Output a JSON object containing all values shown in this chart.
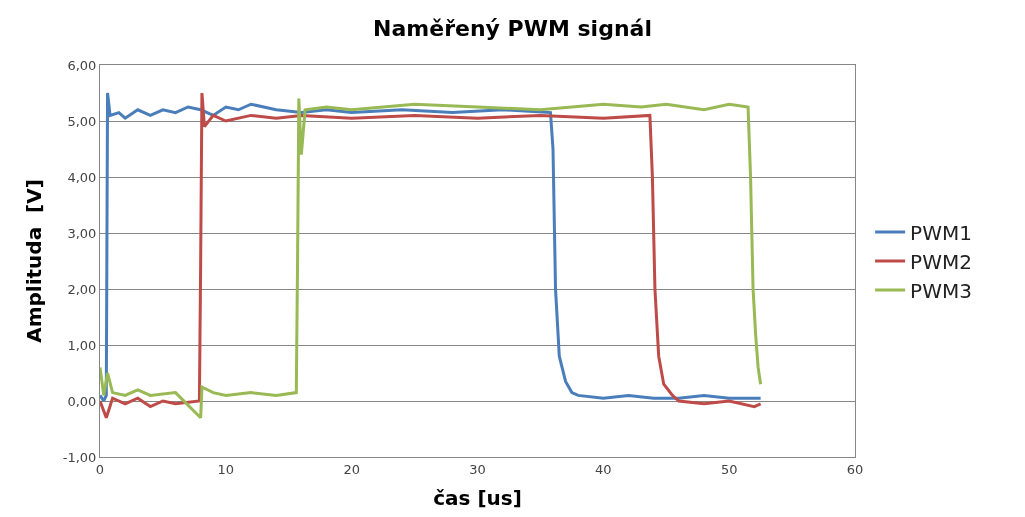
{
  "chart_data": {
    "type": "line",
    "title": "Naměřený PWM signál",
    "xlabel": "čas [us]",
    "ylabel": "Amplituda  [V]",
    "xlim": [
      0,
      60
    ],
    "xticks": [
      0,
      10,
      20,
      30,
      40,
      50,
      60
    ],
    "ylim": [
      -1,
      6
    ],
    "yticks": [
      {
        "value": -1,
        "label": "-1,00"
      },
      {
        "value": 0,
        "label": "0,00"
      },
      {
        "value": 1,
        "label": "1,00"
      },
      {
        "value": 2,
        "label": "2,00"
      },
      {
        "value": 3,
        "label": "3,00"
      },
      {
        "value": 4,
        "label": "4,00"
      },
      {
        "value": 5,
        "label": "5,00"
      },
      {
        "value": 6,
        "label": "6,00"
      }
    ],
    "grid": "y",
    "legend": "right",
    "marker": "none",
    "line_style": "solid",
    "series": [
      {
        "name": "PWM1",
        "color": "#4a7ebb",
        "x": [
          0,
          0.3,
          0.5,
          0.6,
          0.8,
          1.5,
          2,
          3,
          4,
          5,
          6,
          7,
          8,
          9,
          10,
          11,
          12,
          14,
          16,
          18,
          20,
          24,
          28,
          32,
          35.8,
          36.0,
          36.2,
          36.5,
          37,
          37.5,
          38,
          40,
          42,
          44,
          46,
          48,
          50,
          52.5
        ],
        "values": [
          0.1,
          0.0,
          0.1,
          5.5,
          5.1,
          5.15,
          5.05,
          5.2,
          5.1,
          5.2,
          5.15,
          5.25,
          5.2,
          5.1,
          5.25,
          5.2,
          5.3,
          5.2,
          5.15,
          5.2,
          5.15,
          5.2,
          5.15,
          5.2,
          5.15,
          4.5,
          2.0,
          0.8,
          0.35,
          0.15,
          0.1,
          0.05,
          0.1,
          0.05,
          0.05,
          0.1,
          0.05,
          0.05
        ]
      },
      {
        "name": "PWM2",
        "color": "#be4b48",
        "x": [
          0,
          0.5,
          1,
          2,
          3,
          4,
          5,
          6,
          7.9,
          8.0,
          8.1,
          8.3,
          9,
          10,
          12,
          14,
          16,
          20,
          25,
          30,
          35,
          40,
          43.7,
          43.9,
          44.1,
          44.4,
          44.8,
          45.5,
          46,
          48,
          50,
          52,
          52.5
        ],
        "values": [
          0.0,
          -0.3,
          0.05,
          -0.05,
          0.05,
          -0.1,
          0.0,
          -0.05,
          0.0,
          2.5,
          5.5,
          4.9,
          5.1,
          5.0,
          5.1,
          5.05,
          5.1,
          5.05,
          5.1,
          5.05,
          5.1,
          5.05,
          5.1,
          4.0,
          2.0,
          0.8,
          0.3,
          0.1,
          0.0,
          -0.05,
          0.0,
          -0.1,
          -0.05
        ]
      },
      {
        "name": "PWM3",
        "color": "#98b954",
        "x": [
          0,
          0.3,
          0.6,
          1,
          2,
          3,
          4,
          6,
          8,
          8.1,
          9,
          10,
          12,
          14,
          15.6,
          15.7,
          15.8,
          16.0,
          16.3,
          18,
          20,
          25,
          30,
          35,
          40,
          43,
          45,
          48,
          50,
          51.5,
          51.7,
          51.9,
          52.1,
          52.3,
          52.5
        ],
        "values": [
          0.6,
          0.1,
          0.5,
          0.15,
          0.1,
          0.2,
          0.1,
          0.15,
          -0.3,
          0.25,
          0.15,
          0.1,
          0.15,
          0.1,
          0.15,
          2.5,
          5.4,
          4.4,
          5.2,
          5.25,
          5.2,
          5.3,
          5.25,
          5.2,
          5.3,
          5.25,
          5.3,
          5.2,
          5.3,
          5.25,
          4.0,
          2.0,
          1.2,
          0.6,
          0.3
        ]
      }
    ]
  }
}
